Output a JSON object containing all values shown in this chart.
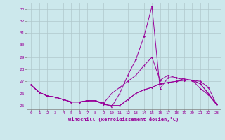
{
  "xlabel": "Windchill (Refroidissement éolien,°C)",
  "bg_color": "#cce8ec",
  "line_color": "#990099",
  "grid_color": "#b0c8cc",
  "xlim": [
    -0.5,
    23.5
  ],
  "ylim": [
    24.7,
    33.5
  ],
  "yticks": [
    25,
    26,
    27,
    28,
    29,
    30,
    31,
    32,
    33
  ],
  "xticks": [
    0,
    1,
    2,
    3,
    4,
    5,
    6,
    7,
    8,
    9,
    10,
    11,
    12,
    13,
    14,
    15,
    16,
    17,
    18,
    19,
    20,
    21,
    22,
    23
  ],
  "curves": [
    [
      26.7,
      26.1,
      25.8,
      25.7,
      25.5,
      25.3,
      25.3,
      25.4,
      25.4,
      25.2,
      24.9,
      26.0,
      27.5,
      28.8,
      30.7,
      33.2,
      26.4,
      27.3,
      27.3,
      27.1,
      27.1,
      26.4,
      25.9,
      25.1
    ],
    [
      26.7,
      26.1,
      25.8,
      25.7,
      25.5,
      25.3,
      25.3,
      25.4,
      25.4,
      25.1,
      25.0,
      25.0,
      25.5,
      26.0,
      26.3,
      26.5,
      26.8,
      26.9,
      27.0,
      27.1,
      27.1,
      26.8,
      26.0,
      25.1
    ],
    [
      26.7,
      26.1,
      25.8,
      25.7,
      25.5,
      25.3,
      25.3,
      25.4,
      25.4,
      25.1,
      25.0,
      25.0,
      25.5,
      26.0,
      26.3,
      26.5,
      26.8,
      26.9,
      27.0,
      27.1,
      27.1,
      26.8,
      26.0,
      25.1
    ],
    [
      26.7,
      26.1,
      25.8,
      25.7,
      25.5,
      25.3,
      25.3,
      25.4,
      25.4,
      25.2,
      26.0,
      26.5,
      27.0,
      27.5,
      28.3,
      29.0,
      27.1,
      27.5,
      27.3,
      27.2,
      27.1,
      27.0,
      26.5,
      25.1
    ]
  ]
}
